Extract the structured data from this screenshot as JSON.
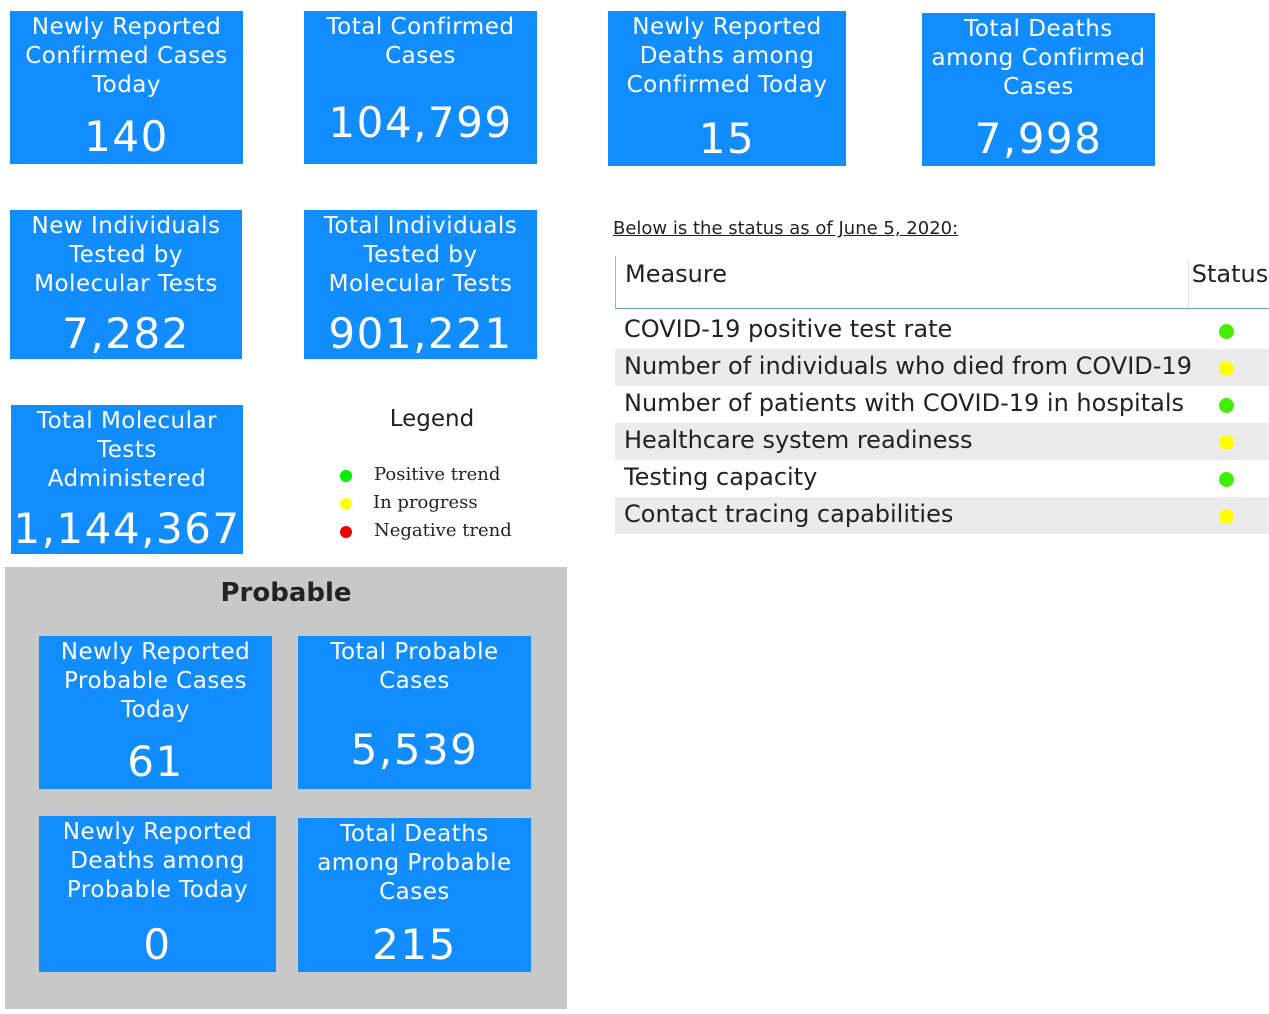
{
  "confirmed_cards": [
    {
      "label": "Newly Reported\nConfirmed Cases\nToday",
      "value": "140"
    },
    {
      "label": "Total Confirmed\nCases",
      "value": "104,799"
    },
    {
      "label": "Newly Reported\nDeaths among\nConfirmed Today",
      "value": "15"
    },
    {
      "label": "Total Deaths\namong Confirmed\nCases",
      "value": "7,998"
    },
    {
      "label": "New Individuals\nTested by\nMolecular Tests",
      "value": "7,282"
    },
    {
      "label": "Total Individuals\nTested by\nMolecular Tests",
      "value": "901,221"
    },
    {
      "label": "Total Molecular\nTests\nAdministered",
      "value": "1,144,367"
    }
  ],
  "legend": {
    "title": "Legend",
    "items": [
      {
        "label": "Positive trend",
        "color": "#00ee00"
      },
      {
        "label": "In progress",
        "color": "#ffff00"
      },
      {
        "label": "Negative trend",
        "color": "#ee0000"
      }
    ]
  },
  "probable": {
    "title": "Probable",
    "cards": [
      {
        "label": "Newly Reported\nProbable Cases\nToday",
        "value": "61"
      },
      {
        "label": "Total Probable\nCases",
        "value": "5,539"
      },
      {
        "label": "Newly Reported\nDeaths among\nProbable Today",
        "value": "0"
      },
      {
        "label": "Total Deaths\namong Probable\nCases",
        "value": "215"
      }
    ]
  },
  "status": {
    "note": "Below is the status as of June 5, 2020:",
    "headers": {
      "measure": "Measure",
      "status": "Status"
    },
    "rows": [
      {
        "measure": "COVID-19 positive test rate",
        "status": "Positive trend",
        "color": "#44ee00"
      },
      {
        "measure": "Number of individuals who died from COVID-19",
        "status": "In progress",
        "color": "#ffff00"
      },
      {
        "measure": "Number of patients with COVID-19 in hospitals",
        "status": "Positive trend",
        "color": "#44ee00"
      },
      {
        "measure": "Healthcare system readiness",
        "status": "In progress",
        "color": "#ffff00"
      },
      {
        "measure": "Testing capacity",
        "status": "Positive trend",
        "color": "#44ee00"
      },
      {
        "measure": "Contact tracing capabilities",
        "status": "In progress",
        "color": "#ffff00"
      }
    ]
  },
  "colors": {
    "card_bg": "#118dff",
    "probable_bg": "#c8c8c8",
    "row_alt": "#ebebeb"
  }
}
